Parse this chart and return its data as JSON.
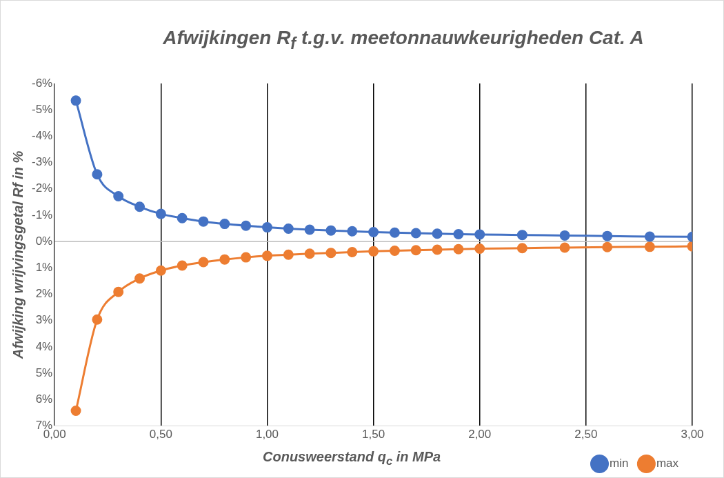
{
  "chart_data": {
    "type": "line",
    "title": "Afwijkingen R$_{f}$ t.g.v. meetonnauwkeurigheden Cat. A",
    "xlabel": "Conusweerstand q$_{c}$ in MPa",
    "ylabel": "Afwijking wrijvingsgetal Rf in %",
    "x": [
      0.1,
      0.2,
      0.3,
      0.4,
      0.5,
      0.6,
      0.7,
      0.8,
      0.9,
      1.0,
      1.1,
      1.2,
      1.3,
      1.4,
      1.5,
      1.6,
      1.7,
      1.8,
      1.9,
      2.0,
      2.2,
      2.4,
      2.6,
      2.8,
      3.0
    ],
    "series": [
      {
        "name": "min",
        "color": "#4472c4",
        "values": [
          -5.35,
          -2.55,
          -1.72,
          -1.32,
          -1.05,
          -0.89,
          -0.76,
          -0.67,
          -0.6,
          -0.54,
          -0.49,
          -0.45,
          -0.42,
          -0.39,
          -0.36,
          -0.34,
          -0.32,
          -0.3,
          -0.28,
          -0.27,
          -0.25,
          -0.23,
          -0.21,
          -0.19,
          -0.18
        ]
      },
      {
        "name": "max",
        "color": "#ed7d31",
        "values": [
          6.42,
          2.96,
          1.91,
          1.4,
          1.1,
          0.91,
          0.78,
          0.68,
          0.6,
          0.54,
          0.5,
          0.46,
          0.43,
          0.4,
          0.37,
          0.35,
          0.33,
          0.31,
          0.29,
          0.27,
          0.25,
          0.23,
          0.21,
          0.2,
          0.18
        ]
      }
    ],
    "xlim": [
      0,
      3
    ],
    "xticks": [
      {
        "value": 0,
        "label": "0,00"
      },
      {
        "value": 0.5,
        "label": "0,50"
      },
      {
        "value": 1,
        "label": "1,00"
      },
      {
        "value": 1.5,
        "label": "1,50"
      },
      {
        "value": 2,
        "label": "2,00"
      },
      {
        "value": 2.5,
        "label": "2,50"
      },
      {
        "value": 3,
        "label": "3,00"
      }
    ],
    "ylim": [
      7,
      -6
    ],
    "yticks": [
      {
        "value": -6,
        "label": "-6%"
      },
      {
        "value": -5,
        "label": "-5%"
      },
      {
        "value": -4,
        "label": "-4%"
      },
      {
        "value": -3,
        "label": "-3%"
      },
      {
        "value": -2,
        "label": "-2%"
      },
      {
        "value": -1,
        "label": "-1%"
      },
      {
        "value": 0,
        "label": "0%"
      },
      {
        "value": 1,
        "label": "1%"
      },
      {
        "value": 2,
        "label": "2%"
      },
      {
        "value": 3,
        "label": "3%"
      },
      {
        "value": 4,
        "label": "4%"
      },
      {
        "value": 5,
        "label": "5%"
      },
      {
        "value": 6,
        "label": "6%"
      },
      {
        "value": 7,
        "label": "7%"
      }
    ],
    "ref_lines": [
      {
        "axis": "y",
        "value": 0,
        "color": "#bfbfbf"
      }
    ],
    "grid": "x",
    "legend": "bottom right",
    "marker": "circle",
    "line_style": "solid"
  }
}
